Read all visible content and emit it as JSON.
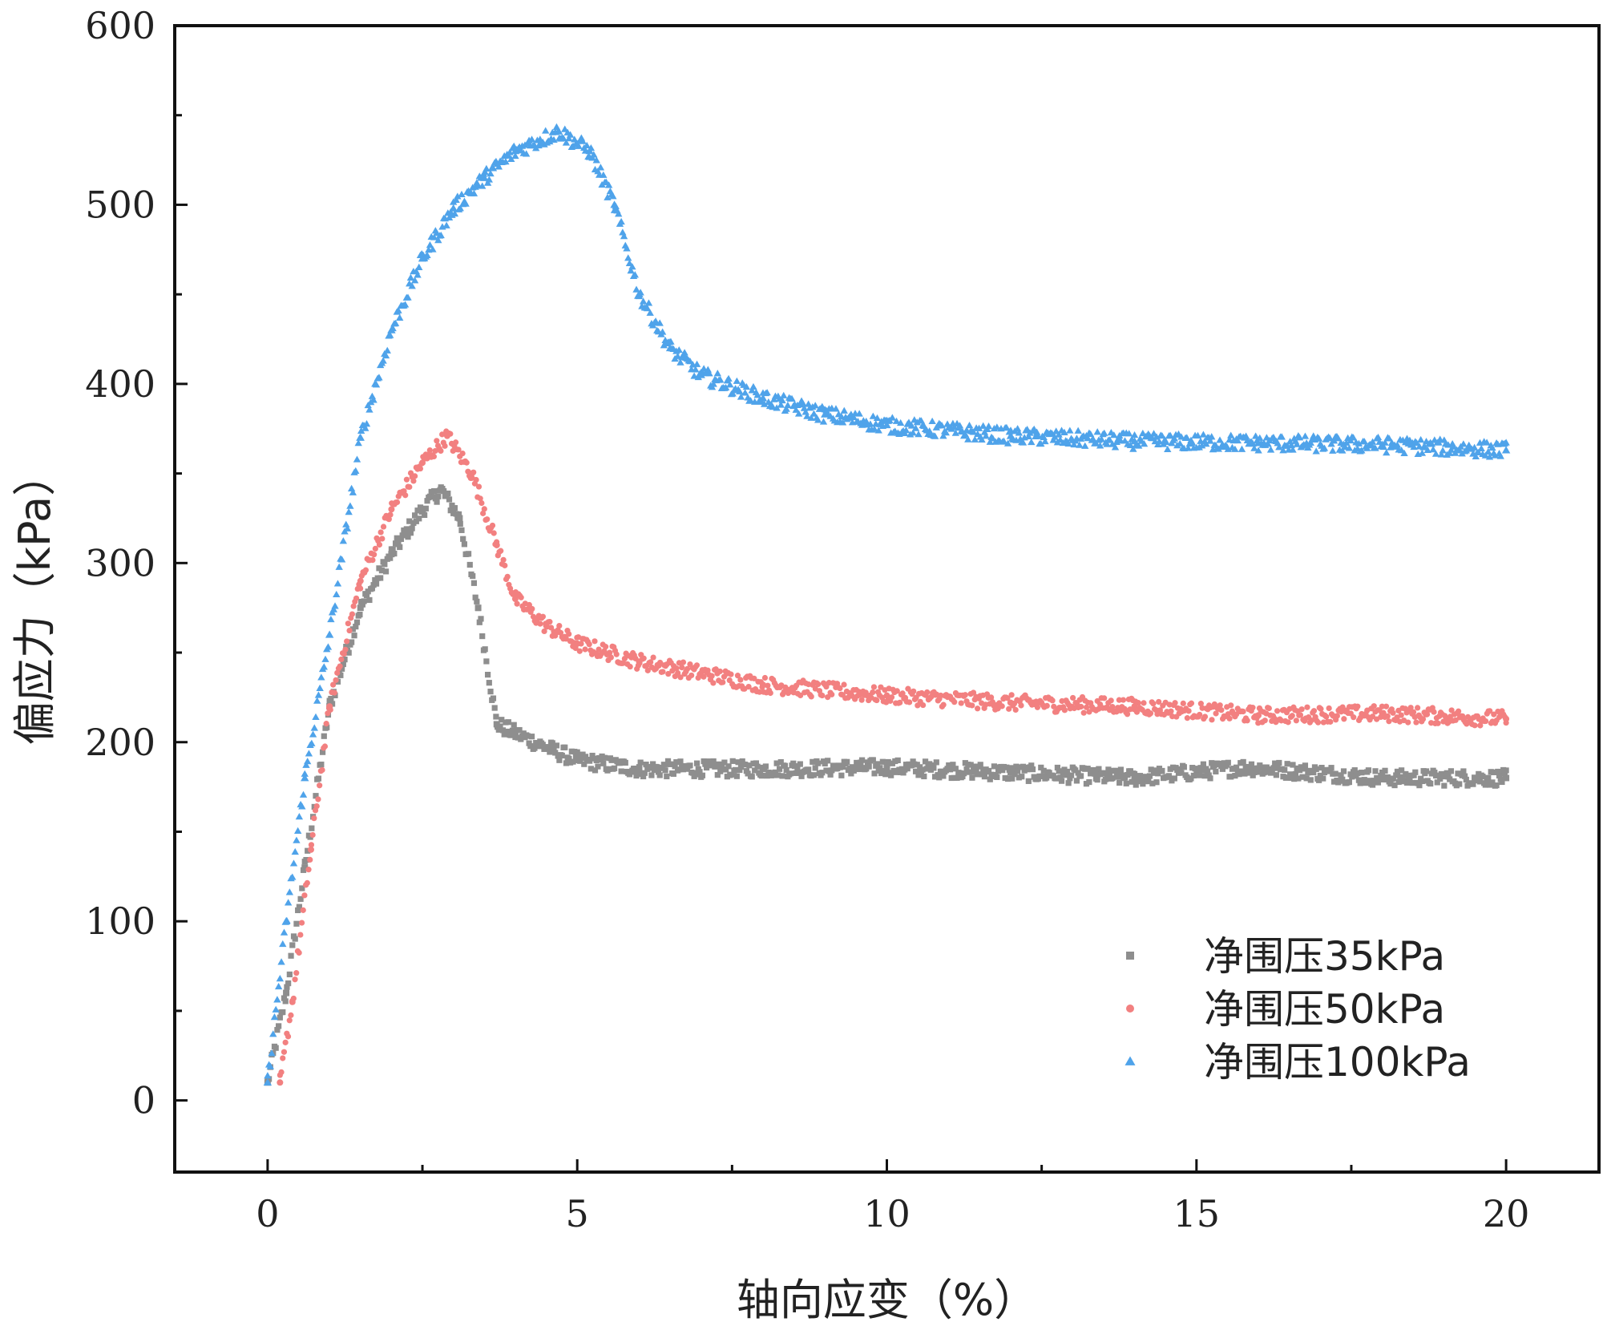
{
  "chart_data": {
    "type": "scatter",
    "title": "",
    "xlabel": "轴向应变（%）",
    "ylabel": "偏应力（kPa）",
    "xlim": [
      -1.5,
      21.5
    ],
    "ylim": [
      -40,
      600
    ],
    "xticks": [
      0,
      5,
      10,
      15,
      20
    ],
    "yticks": [
      0,
      100,
      200,
      300,
      400,
      500,
      600
    ],
    "grid": false,
    "legend_position": "bottom-right",
    "series": [
      {
        "name": "净围压35kPa",
        "marker": "square",
        "color": "#8e8e8e",
        "x": [
          0.0,
          0.3,
          0.6,
          1.0,
          1.5,
          2.0,
          2.5,
          2.8,
          3.1,
          3.4,
          3.7,
          4.0,
          4.5,
          5.0,
          6.0,
          8.0,
          10.0,
          12.0,
          14.0,
          15.8,
          18.0,
          20.0
        ],
        "y": [
          10,
          60,
          130,
          220,
          275,
          305,
          330,
          341,
          325,
          275,
          210,
          205,
          197,
          190,
          185,
          185,
          186,
          183,
          180,
          186,
          180,
          180
        ]
      },
      {
        "name": "净围压50kPa",
        "marker": "circle",
        "color": "#f28080",
        "x": [
          0.2,
          0.4,
          0.7,
          1.0,
          1.5,
          2.0,
          2.5,
          2.9,
          3.3,
          3.7,
          4.0,
          4.5,
          5.0,
          6.0,
          8.0,
          10.0,
          12.0,
          14.0,
          16.0,
          18.0,
          20.0
        ],
        "y": [
          10,
          55,
          140,
          220,
          290,
          330,
          356,
          371,
          350,
          310,
          280,
          265,
          255,
          245,
          232,
          226,
          222,
          220,
          215,
          216,
          213
        ]
      },
      {
        "name": "净围压100kPa",
        "marker": "triangle",
        "color": "#4fa3ea",
        "x": [
          0.0,
          0.3,
          0.6,
          1.0,
          1.5,
          2.0,
          2.5,
          3.0,
          3.5,
          4.0,
          4.7,
          5.2,
          5.6,
          6.0,
          6.5,
          7.0,
          8.0,
          9.0,
          10.0,
          12.0,
          14.0,
          16.0,
          18.0,
          20.0
        ],
        "y": [
          10,
          100,
          180,
          260,
          370,
          430,
          470,
          498,
          515,
          530,
          541,
          530,
          500,
          450,
          420,
          405,
          392,
          383,
          377,
          371,
          368,
          367,
          366,
          363
        ]
      }
    ]
  }
}
